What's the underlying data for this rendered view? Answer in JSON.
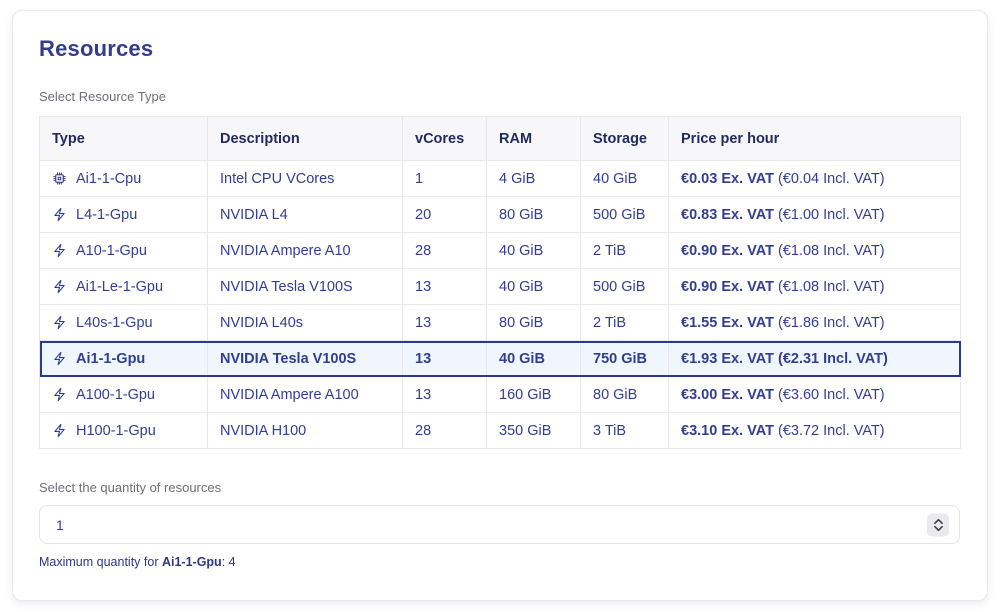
{
  "panel": {
    "title": "Resources",
    "table_label": "Select Resource Type",
    "quantity_label": "Select the quantity of resources",
    "quantity_value": "1",
    "max_note_prefix": "Maximum quantity for ",
    "max_note_resource": "Ai1-1-Gpu",
    "max_note_suffix": ": 4"
  },
  "table": {
    "columns": [
      "Type",
      "Description",
      "vCores",
      "RAM",
      "Storage",
      "Price per hour"
    ],
    "rows": [
      {
        "icon": "cpu-chip-icon",
        "type": "Ai1-1-Cpu",
        "description": "Intel CPU VCores",
        "vcores": "1",
        "ram": "4 GiB",
        "storage": "40 GiB",
        "price_ex": "€0.03 Ex. VAT",
        "price_incl": " (€0.04 Incl. VAT)",
        "selected": false
      },
      {
        "icon": "lightning-bolt-icon",
        "type": "L4-1-Gpu",
        "description": "NVIDIA L4",
        "vcores": "20",
        "ram": "80 GiB",
        "storage": "500 GiB",
        "price_ex": "€0.83 Ex. VAT",
        "price_incl": " (€1.00 Incl. VAT)",
        "selected": false
      },
      {
        "icon": "lightning-bolt-icon",
        "type": "A10-1-Gpu",
        "description": "NVIDIA Ampere A10",
        "vcores": "28",
        "ram": "40 GiB",
        "storage": "2 TiB",
        "price_ex": "€0.90 Ex. VAT",
        "price_incl": " (€1.08 Incl. VAT)",
        "selected": false
      },
      {
        "icon": "lightning-bolt-icon",
        "type": "Ai1-Le-1-Gpu",
        "description": "NVIDIA Tesla V100S",
        "vcores": "13",
        "ram": "40 GiB",
        "storage": "500 GiB",
        "price_ex": "€0.90 Ex. VAT",
        "price_incl": " (€1.08 Incl. VAT)",
        "selected": false
      },
      {
        "icon": "lightning-bolt-icon",
        "type": "L40s-1-Gpu",
        "description": "NVIDIA L40s",
        "vcores": "13",
        "ram": "80 GiB",
        "storage": "2 TiB",
        "price_ex": "€1.55 Ex. VAT",
        "price_incl": " (€1.86 Incl. VAT)",
        "selected": false
      },
      {
        "icon": "lightning-bolt-icon",
        "type": "Ai1-1-Gpu",
        "description": "NVIDIA Tesla V100S",
        "vcores": "13",
        "ram": "40 GiB",
        "storage": "750 GiB",
        "price_ex": "€1.93 Ex. VAT",
        "price_incl": " (€2.31 Incl. VAT)",
        "selected": true
      },
      {
        "icon": "lightning-bolt-icon",
        "type": "A100-1-Gpu",
        "description": "NVIDIA Ampere A100",
        "vcores": "13",
        "ram": "160 GiB",
        "storage": "80 GiB",
        "price_ex": "€3.00 Ex. VAT",
        "price_incl": " (€3.60 Incl. VAT)",
        "selected": false
      },
      {
        "icon": "lightning-bolt-icon",
        "type": "H100-1-Gpu",
        "description": "NVIDIA H100",
        "vcores": "28",
        "ram": "350 GiB",
        "storage": "3 TiB",
        "price_ex": "€3.10 Ex. VAT",
        "price_incl": " (€3.72 Incl. VAT)",
        "selected": false
      }
    ]
  },
  "colors": {
    "title_navy": "#333c8f",
    "header_navy": "#212b5f",
    "body_navy": "#333d92",
    "muted_gray": "#6f6f7a",
    "selected_border": "#2b3990",
    "selected_bg": "#eff6fd",
    "table_border": "#e8e8ec",
    "header_bg": "#f7f7f9",
    "stepper_bg": "#e9e9ef"
  }
}
